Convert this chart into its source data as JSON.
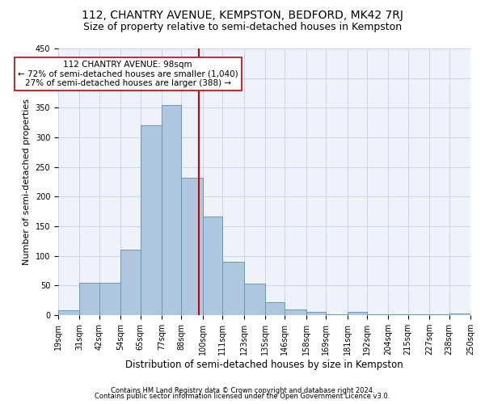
{
  "title": "112, CHANTRY AVENUE, KEMPSTON, BEDFORD, MK42 7RJ",
  "subtitle": "Size of property relative to semi-detached houses in Kempston",
  "xlabel": "Distribution of semi-detached houses by size in Kempston",
  "ylabel": "Number of semi-detached properties",
  "bar_color": "#aec6de",
  "bar_edge_color": "#6699bb",
  "background_color": "#eef2fb",
  "grid_color": "#c8cfe8",
  "vline_x": 98,
  "vline_color": "#cc0000",
  "annotation_title": "112 CHANTRY AVENUE: 98sqm",
  "annotation_line1": "← 72% of semi-detached houses are smaller (1,040)",
  "annotation_line2": "27% of semi-detached houses are larger (388) →",
  "annotation_box_color": "#cc0000",
  "bins": [
    19,
    31,
    42,
    54,
    65,
    77,
    88,
    100,
    111,
    123,
    135,
    146,
    158,
    169,
    181,
    192,
    204,
    215,
    227,
    238,
    250
  ],
  "heights": [
    8,
    55,
    55,
    110,
    321,
    355,
    232,
    167,
    90,
    53,
    22,
    10,
    5,
    1,
    5,
    2,
    2,
    1,
    1,
    3
  ],
  "tick_labels": [
    "19sqm",
    "31sqm",
    "42sqm",
    "54sqm",
    "65sqm",
    "77sqm",
    "88sqm",
    "100sqm",
    "111sqm",
    "123sqm",
    "135sqm",
    "146sqm",
    "158sqm",
    "169sqm",
    "181sqm",
    "192sqm",
    "204sqm",
    "215sqm",
    "227sqm",
    "238sqm",
    "250sqm"
  ],
  "ylim": [
    0,
    450
  ],
  "yticks": [
    0,
    50,
    100,
    150,
    200,
    250,
    300,
    350,
    400,
    450
  ],
  "footer1": "Contains HM Land Registry data © Crown copyright and database right 2024.",
  "footer2": "Contains public sector information licensed under the Open Government Licence v3.0.",
  "title_fontsize": 10,
  "subtitle_fontsize": 9,
  "tick_fontsize": 7,
  "ylabel_fontsize": 8,
  "xlabel_fontsize": 8.5,
  "footer_fontsize": 6,
  "ann_fontsize": 7.5
}
